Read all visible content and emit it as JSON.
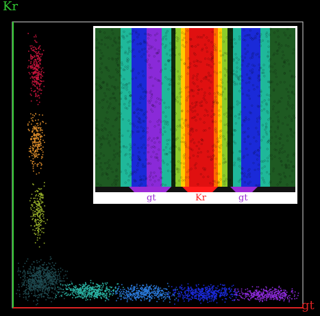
{
  "axes": {
    "y_label": "Kr",
    "x_label": "gt",
    "y_axis_color": "#33cc33",
    "x_axis_color": "#dd2222",
    "frame_color": "#d8d8d8"
  },
  "inset": {
    "labels": [
      "gt",
      "Kr",
      "gt"
    ],
    "label_colors": [
      "#9a2bd6",
      "#ff1a1a",
      "#9a2bd6"
    ],
    "tab_colors": [
      "#9a2bd6",
      "#ff1a1a",
      "#9a2bd6"
    ]
  },
  "palette": {
    "crimson": "#c8143c",
    "orange": "#d98a2a",
    "yellow_green": "#9ab32a",
    "dark_teal": "#1f4a50",
    "teal": "#2ab3a3",
    "blue": "#2a78d8",
    "navy": "#1a2ad8",
    "purple": "#8a2ad8"
  }
}
